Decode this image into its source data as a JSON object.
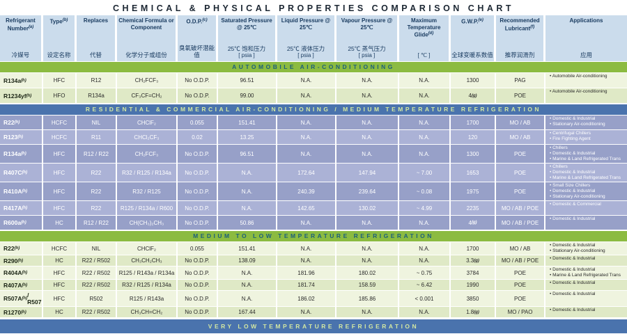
{
  "title": "CHEMICAL & PHYSICAL PROPERTIES COMPARISON CHART",
  "colors": {
    "title_text": "#1c2733",
    "header_bg": "#cbdcec",
    "header_text": "#17395e",
    "green_bar_bg": "#8cbb41",
    "green_bar_text": "#1d6079",
    "blue_bar_bg": "#4a73ad",
    "blue_bar_text": "#d3e7a2",
    "green_row_light": "#eff4df",
    "green_row_dark": "#dfe9c6",
    "blue_row_dark": "#97a0c8",
    "blue_row_light": "#abb2d6",
    "dark_text": "#2a2a2a",
    "light_text": "#ffffff"
  },
  "chart_data": {
    "type": "table",
    "title": "CHEMICAL & PHYSICAL PROPERTIES COMPARISON CHART",
    "columns": [
      {
        "key": "name",
        "en": "Refrigerant Number",
        "sup": "(a)",
        "zh": "冷媒号",
        "unit": ""
      },
      {
        "key": "type",
        "en": "Type",
        "sup": "(b)",
        "zh": "设定名称",
        "unit": ""
      },
      {
        "key": "replaces",
        "en": "Replaces",
        "sup": "",
        "zh": "代替",
        "unit": ""
      },
      {
        "key": "formula",
        "en": "Chemical Formula or Component",
        "sup": "",
        "zh": "化学分子或组份",
        "unit": ""
      },
      {
        "key": "odp",
        "en": "O.D.P.",
        "sup": "(c)",
        "zh": "臭氧破坏潜能值",
        "unit": ""
      },
      {
        "key": "sat",
        "en": "Saturated Pressure @ 25℃",
        "sup": "",
        "zh": "25℃ 饱和压力",
        "unit": "[ psia ]"
      },
      {
        "key": "liq",
        "en": "Liquid Pressure @ 25℃",
        "sup": "",
        "zh": "25℃ 液体压力",
        "unit": "[ psia ]"
      },
      {
        "key": "vap",
        "en": "Vapour Pressure @ 25℃",
        "sup": "",
        "zh": "25℃ 蒸气压力",
        "unit": "[ psia ]"
      },
      {
        "key": "glide",
        "en": "Maximum Temperature Glide",
        "sup": "(d)",
        "zh": "",
        "unit": "[ ℃ ]"
      },
      {
        "key": "gwp",
        "en": "G.W.P.",
        "sup": "(e)",
        "zh": "全球变暖系数值",
        "unit": ""
      },
      {
        "key": "lube",
        "en": "Recommended Lubricant",
        "sup": "(f)",
        "zh": "推荐润滑剂",
        "unit": ""
      },
      {
        "key": "apps",
        "en": "Applications",
        "sup": "",
        "zh": "应用",
        "unit": ""
      }
    ],
    "sections": [
      {
        "header": "AUTOMOBILE AIR-CONDITIONING",
        "theme": "green",
        "rows": [
          {
            "name": "R134a",
            "name_sup": "(h)",
            "type": "HFC",
            "replaces": "R12",
            "formula": "CH₂FCF₃",
            "odp": "No O.D.P.",
            "sat": "96.51",
            "liq": "N.A.",
            "vap": "N.A.",
            "glide": "N.A.",
            "gwp": "1300",
            "gwp_sup": "",
            "lube": "PAG",
            "apps": [
              "Automobile Air-conditioning"
            ]
          },
          {
            "name": "R1234yf",
            "name_sup": "(h)",
            "type": "HFO",
            "replaces": "R134a",
            "formula": "CF₃CF=CH₂",
            "odp": "No O.D.P.",
            "sat": "99.00",
            "liq": "N.A.",
            "vap": "N.A.",
            "glide": "N.A.",
            "gwp": "4",
            "gwp_sup": "(g)",
            "lube": "POE",
            "apps": [
              "Automobile Air-conditioning"
            ]
          }
        ]
      },
      {
        "header": "RESIDENTIAL & COMMERCIAL AIR-CONDITIONING / MEDIUM TEMPERATURE REFRIGERATION",
        "theme": "blue",
        "rows": [
          {
            "name": "R22",
            "name_sup": "(h)",
            "type": "HCFC",
            "replaces": "NIL",
            "formula": "CHClF₂",
            "odp": "0.055",
            "sat": "151.41",
            "liq": "N.A.",
            "vap": "N.A.",
            "glide": "N.A.",
            "gwp": "1700",
            "gwp_sup": "",
            "lube": "MO / AB",
            "apps": [
              "Domestic & Industrial",
              "Stationary Air-conditioning"
            ]
          },
          {
            "name": "R123",
            "name_sup": "(h)",
            "type": "HCFC",
            "replaces": "R11",
            "formula": "CHCl₂CF₃",
            "odp": "0.02",
            "sat": "13.25",
            "liq": "N.A.",
            "vap": "N.A.",
            "glide": "N.A.",
            "gwp": "120",
            "gwp_sup": "",
            "lube": "MO / AB",
            "apps": [
              "Centrifugal Chillers",
              "Fire Fighting Agent"
            ]
          },
          {
            "name": "R134a",
            "name_sup": "(h)",
            "type": "HFC",
            "replaces": "R12 / R22",
            "formula": "CH₂FCF₃",
            "odp": "No O.D.P.",
            "sat": "96.51",
            "liq": "N.A.",
            "vap": "N.A.",
            "glide": "N.A.",
            "gwp": "1300",
            "gwp_sup": "",
            "lube": "POE",
            "apps": [
              "Chillers",
              "Domestic & Industrial",
              "Marine & Land Refrigerated Trans"
            ]
          },
          {
            "name": "R407C",
            "name_sup": "(h)",
            "type": "HFC",
            "replaces": "R22",
            "formula": "R32 / R125 / R134a",
            "odp": "No O.D.P.",
            "sat": "N.A.",
            "liq": "172.64",
            "vap": "147.94",
            "glide": "~ 7.00",
            "gwp": "1653",
            "gwp_sup": "",
            "lube": "POE",
            "apps": [
              "Chillers",
              "Domestic & Industrial",
              "Marine & Land Refrigerated Trans"
            ]
          },
          {
            "name": "R410A",
            "name_sup": "(h)",
            "type": "HFC",
            "replaces": "R22",
            "formula": "R32 / R125",
            "odp": "No O.D.P.",
            "sat": "N.A.",
            "liq": "240.39",
            "vap": "239.64",
            "glide": "~ 0.08",
            "gwp": "1975",
            "gwp_sup": "",
            "lube": "POE",
            "apps": [
              "Small Size Chillers",
              "Domestic & Industrial",
              "Stationary Air-conditioning"
            ]
          },
          {
            "name": "R417A",
            "name_sup": "(h)",
            "type": "HFC",
            "replaces": "R22",
            "formula": "R125 / R134a / R600",
            "odp": "No O.D.P.",
            "sat": "N.A.",
            "liq": "142.65",
            "vap": "130.02",
            "glide": "~ 4.99",
            "gwp": "2235",
            "gwp_sup": "",
            "lube": "MO / AB / POE",
            "apps": [
              "Domestic & Commercial"
            ]
          },
          {
            "name": "R600a",
            "name_sup": "(h)",
            "type": "HC",
            "replaces": "R12 / R22",
            "formula": "CH(CH₃)₂CH₃",
            "odp": "No O.D.P.",
            "sat": "50.86",
            "liq": "N.A.",
            "vap": "N.A.",
            "glide": "N.A.",
            "gwp": "4",
            "gwp_sup": "(g)",
            "lube": "MO / AB / POE",
            "apps": [
              "Domestic & Industrial"
            ]
          }
        ]
      },
      {
        "header": "MEDIUM TO LOW TEMPERATURE REFRIGERATION",
        "theme": "green",
        "compact": true,
        "rows": [
          {
            "name": "R22",
            "name_sup": "(h)",
            "type": "HCFC",
            "replaces": "NIL",
            "formula": "CHClF₂",
            "odp": "0.055",
            "sat": "151.41",
            "liq": "N.A.",
            "vap": "N.A.",
            "glide": "N.A.",
            "gwp": "1700",
            "gwp_sup": "",
            "lube": "MO / AB",
            "apps": [
              "Domestic & Industrial",
              "Stationary Air-conditioning"
            ]
          },
          {
            "name": "R290",
            "name_sup": "(h)",
            "type": "HC",
            "replaces": "R22 / R502",
            "formula": "CH₃CH₂CH₃",
            "odp": "No O.D.P.",
            "sat": "138.09",
            "liq": "N.A.",
            "vap": "N.A.",
            "glide": "N.A.",
            "gwp": "3.3",
            "gwp_sup": "(g)",
            "lube": "MO / AB / POE",
            "apps": [
              "Domestic & Industrial"
            ]
          },
          {
            "name": "R404A",
            "name_sup": "(h)",
            "type": "HFC",
            "replaces": "R22 / R502",
            "formula": "R125 / R143a / R134a",
            "odp": "No O.D.P.",
            "sat": "N.A.",
            "liq": "181.96",
            "vap": "180.02",
            "glide": "~ 0.75",
            "gwp": "3784",
            "gwp_sup": "",
            "lube": "POE",
            "apps": [
              "Domestic & Industrial",
              "Marine & Land Refrigerated Trans"
            ]
          },
          {
            "name": "R407A",
            "name_sup": "(h)",
            "type": "HFC",
            "replaces": "R22 / R502",
            "formula": "R32 / R125 / R134a",
            "odp": "No O.D.P.",
            "sat": "N.A.",
            "liq": "181.74",
            "vap": "158.59",
            "glide": "~ 6.42",
            "gwp": "1990",
            "gwp_sup": "",
            "lube": "POE",
            "apps": [
              "Domestic & Industrial"
            ]
          },
          {
            "name": "R507A",
            "name_sup": "(h)",
            "name_suffix": "/ R507",
            "type": "HFC",
            "replaces": "R502",
            "formula": "R125 / R143a",
            "odp": "No O.D.P.",
            "sat": "N.A.",
            "liq": "186.02",
            "vap": "185.86",
            "glide": "< 0.001",
            "gwp": "3850",
            "gwp_sup": "",
            "lube": "POE",
            "apps": [
              "Domestic & Industrial"
            ]
          },
          {
            "name": "R1270",
            "name_sup": "(h)",
            "type": "HC",
            "replaces": "R22 / R502",
            "formula": "CH₃CH=CH₂",
            "odp": "No O.D.P.",
            "sat": "167.44",
            "liq": "N.A.",
            "vap": "N.A.",
            "glide": "N.A.",
            "gwp": "1.8",
            "gwp_sup": "(g)",
            "lube": "MO / PAO",
            "apps": [
              "Domestic & Industrial"
            ]
          }
        ]
      }
    ],
    "footer_bar": "VERY LOW TEMPERATURE REFRIGERATION"
  }
}
